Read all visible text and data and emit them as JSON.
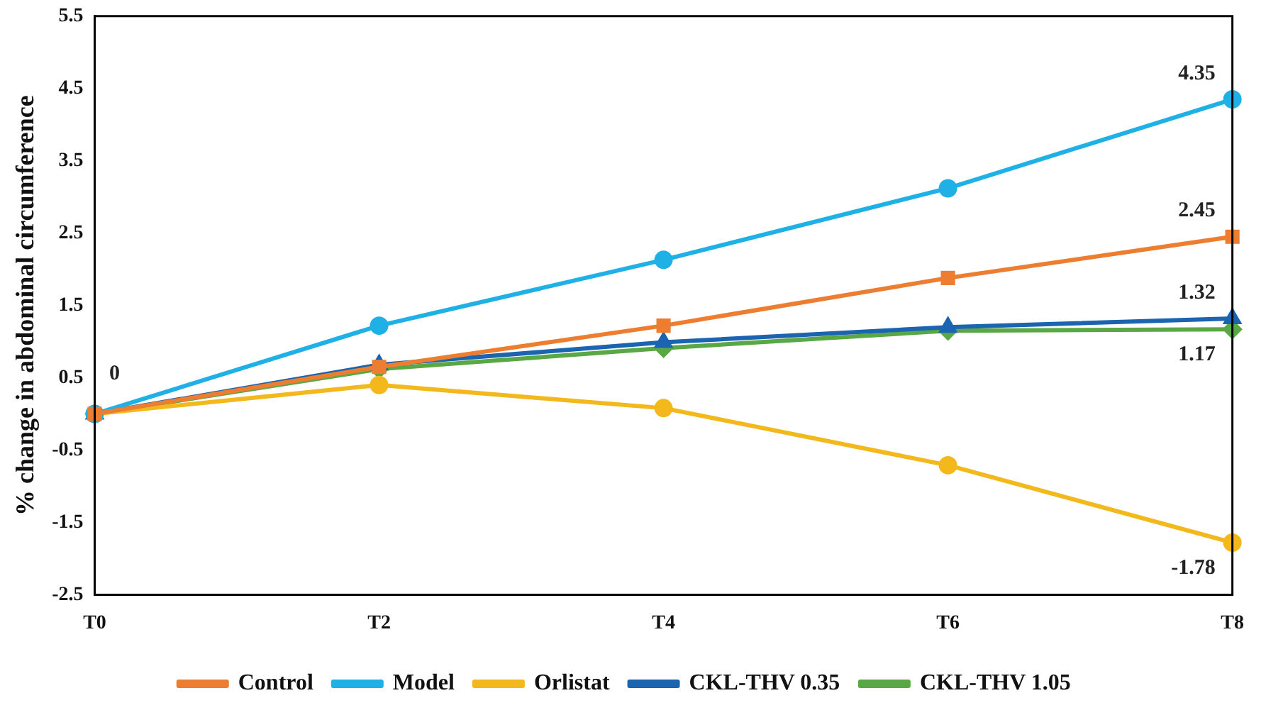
{
  "chart_data": {
    "type": "line",
    "ylabel": "% change in abdominal circumference",
    "categories": [
      "T0",
      "T2",
      "T4",
      "T6",
      "T8"
    ],
    "ylim": [
      -2.5,
      5.5
    ],
    "yticks": [
      -2.5,
      -1.5,
      -0.5,
      0.5,
      1.5,
      2.5,
      3.5,
      4.5,
      5.5
    ],
    "grid": false,
    "legend": "bottom",
    "line_style": "solid",
    "series": [
      {
        "name": "Control",
        "color": "#ed7d31",
        "marker": "square",
        "values": [
          0,
          0.65,
          1.22,
          1.88,
          2.45
        ],
        "value_labels": [
          null,
          null,
          null,
          null,
          "2.45"
        ]
      },
      {
        "name": "Model",
        "color": "#1fb0e6",
        "marker": "circle",
        "values": [
          0,
          1.22,
          2.13,
          3.12,
          4.35
        ],
        "value_labels": [
          "0",
          null,
          null,
          null,
          "4.35"
        ]
      },
      {
        "name": "Orlistat",
        "color": "#f2b81c",
        "marker": "circle",
        "values": [
          0,
          0.4,
          0.08,
          -0.71,
          -1.78
        ],
        "value_labels": [
          null,
          null,
          null,
          null,
          "-1.78"
        ]
      },
      {
        "name": "CKL-THV 0.35",
        "color": "#1a64b0",
        "marker": "triangle",
        "values": [
          0,
          0.68,
          0.99,
          1.2,
          1.32
        ],
        "value_labels": [
          null,
          null,
          null,
          null,
          "1.32"
        ]
      },
      {
        "name": "CKL-THV 1.05",
        "color": "#5aa845",
        "marker": "diamond",
        "values": [
          0,
          0.62,
          0.91,
          1.15,
          1.17
        ],
        "value_labels": [
          null,
          null,
          null,
          null,
          "1.17"
        ]
      }
    ]
  }
}
